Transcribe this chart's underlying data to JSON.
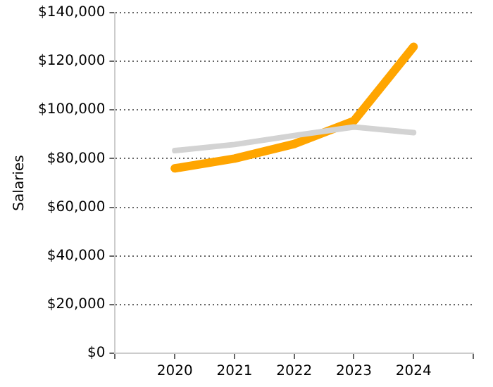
{
  "chart_data": {
    "type": "line",
    "ylabel": "Salaries",
    "x": [
      2020,
      2021,
      2022,
      2023,
      2024
    ],
    "series": [
      {
        "color": "#d3d3d3",
        "values": [
          83300,
          85800,
          89500,
          93000,
          90700
        ]
      },
      {
        "color": "#ffa500",
        "values": [
          76000,
          80000,
          86000,
          95500,
          126000
        ]
      }
    ],
    "xlim": [
      2019,
      2025
    ],
    "xticks": [
      {
        "value": 2019,
        "label": null
      },
      2020,
      2021,
      2022,
      2023,
      2024,
      {
        "value": 2025,
        "label": null
      }
    ],
    "ylim": [
      0,
      140000
    ],
    "yticks": [
      {
        "value": 0,
        "label": "$0"
      },
      {
        "value": 20000,
        "label": "$20,000"
      },
      {
        "value": 40000,
        "label": "$40,000"
      },
      {
        "value": 60000,
        "label": "$60,000"
      },
      {
        "value": 80000,
        "label": "$80,000"
      },
      {
        "value": 100000,
        "label": "$100,000"
      },
      {
        "value": 120000,
        "label": "$120,000"
      },
      {
        "value": 140000,
        "label": "$140,000"
      }
    ],
    "grid": "y",
    "legend": false,
    "marker": "none",
    "line_style": "solid"
  }
}
